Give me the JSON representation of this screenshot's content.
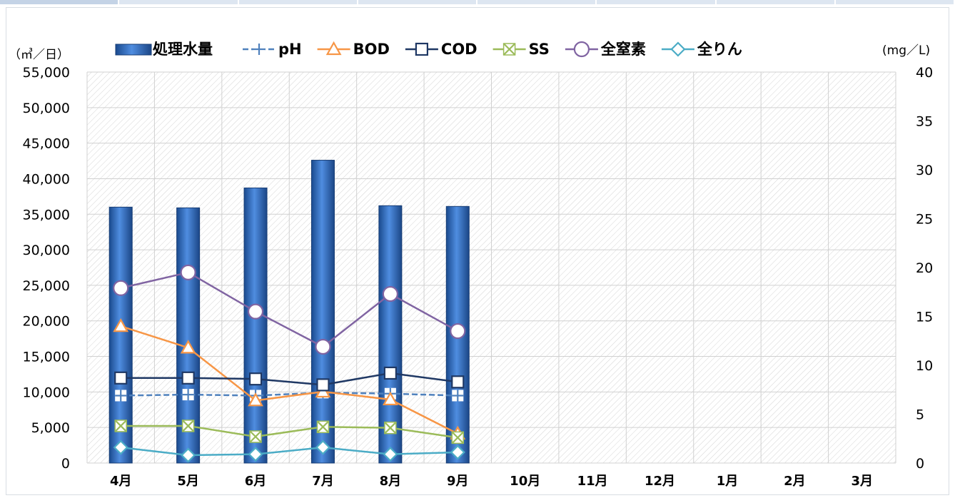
{
  "chart_data": {
    "type": "bar",
    "left_unit": "（㎥／日）",
    "right_unit": "(mg／L)",
    "categories": [
      "4月",
      "5月",
      "6月",
      "7月",
      "8月",
      "9月",
      "10月",
      "11月",
      "12月",
      "1月",
      "2月",
      "3月"
    ],
    "y_left": {
      "min": 0,
      "max": 55000,
      "ticks": [
        0,
        5000,
        10000,
        15000,
        20000,
        25000,
        30000,
        35000,
        40000,
        45000,
        50000,
        55000
      ],
      "tick_labels": [
        "0",
        "5,000",
        "10,000",
        "15,000",
        "20,000",
        "25,000",
        "30,000",
        "35,000",
        "40,000",
        "45,000",
        "50,000",
        "55,000"
      ]
    },
    "y_right": {
      "min": 0,
      "max": 40,
      "ticks": [
        0,
        5,
        10,
        15,
        20,
        25,
        30,
        35,
        40
      ],
      "tick_labels": [
        "0",
        "5",
        "10",
        "15",
        "20",
        "25",
        "30",
        "35",
        "40"
      ]
    },
    "grid": true,
    "legend_position": "top",
    "bars": {
      "name": "処理水量",
      "axis": "left",
      "color": "#2e6bbd",
      "values": [
        36000,
        35900,
        38700,
        42600,
        36200,
        36100,
        null,
        null,
        null,
        null,
        null,
        null
      ]
    },
    "series": [
      {
        "name": "pH",
        "axis": "right",
        "color": "#4f81bd",
        "marker": "plus",
        "dashed": true,
        "values": [
          6.9,
          7.0,
          6.9,
          7.2,
          7.1,
          6.9,
          null,
          null,
          null,
          null,
          null,
          null
        ]
      },
      {
        "name": "BOD",
        "axis": "right",
        "color": "#f79646",
        "marker": "triangle",
        "dashed": false,
        "values": [
          14.0,
          11.8,
          6.4,
          7.3,
          6.5,
          3.0,
          null,
          null,
          null,
          null,
          null,
          null
        ]
      },
      {
        "name": "COD",
        "axis": "right",
        "color": "#1f3864",
        "marker": "square",
        "dashed": false,
        "values": [
          8.7,
          8.7,
          8.6,
          8.0,
          9.2,
          8.3,
          null,
          null,
          null,
          null,
          null,
          null
        ]
      },
      {
        "name": "SS",
        "axis": "right",
        "color": "#9bbb59",
        "marker": "x",
        "dashed": false,
        "values": [
          3.8,
          3.8,
          2.7,
          3.7,
          3.6,
          2.6,
          null,
          null,
          null,
          null,
          null,
          null
        ]
      },
      {
        "name": "全窒素",
        "axis": "right",
        "color": "#8064a2",
        "marker": "circle",
        "dashed": false,
        "values": [
          17.9,
          19.5,
          15.5,
          11.9,
          17.3,
          13.5,
          null,
          null,
          null,
          null,
          null,
          null
        ]
      },
      {
        "name": "全りん",
        "axis": "right",
        "color": "#4bacc6",
        "marker": "diamond",
        "dashed": false,
        "values": [
          1.6,
          0.8,
          0.9,
          1.6,
          0.9,
          1.1,
          null,
          null,
          null,
          null,
          null,
          null
        ]
      }
    ]
  }
}
